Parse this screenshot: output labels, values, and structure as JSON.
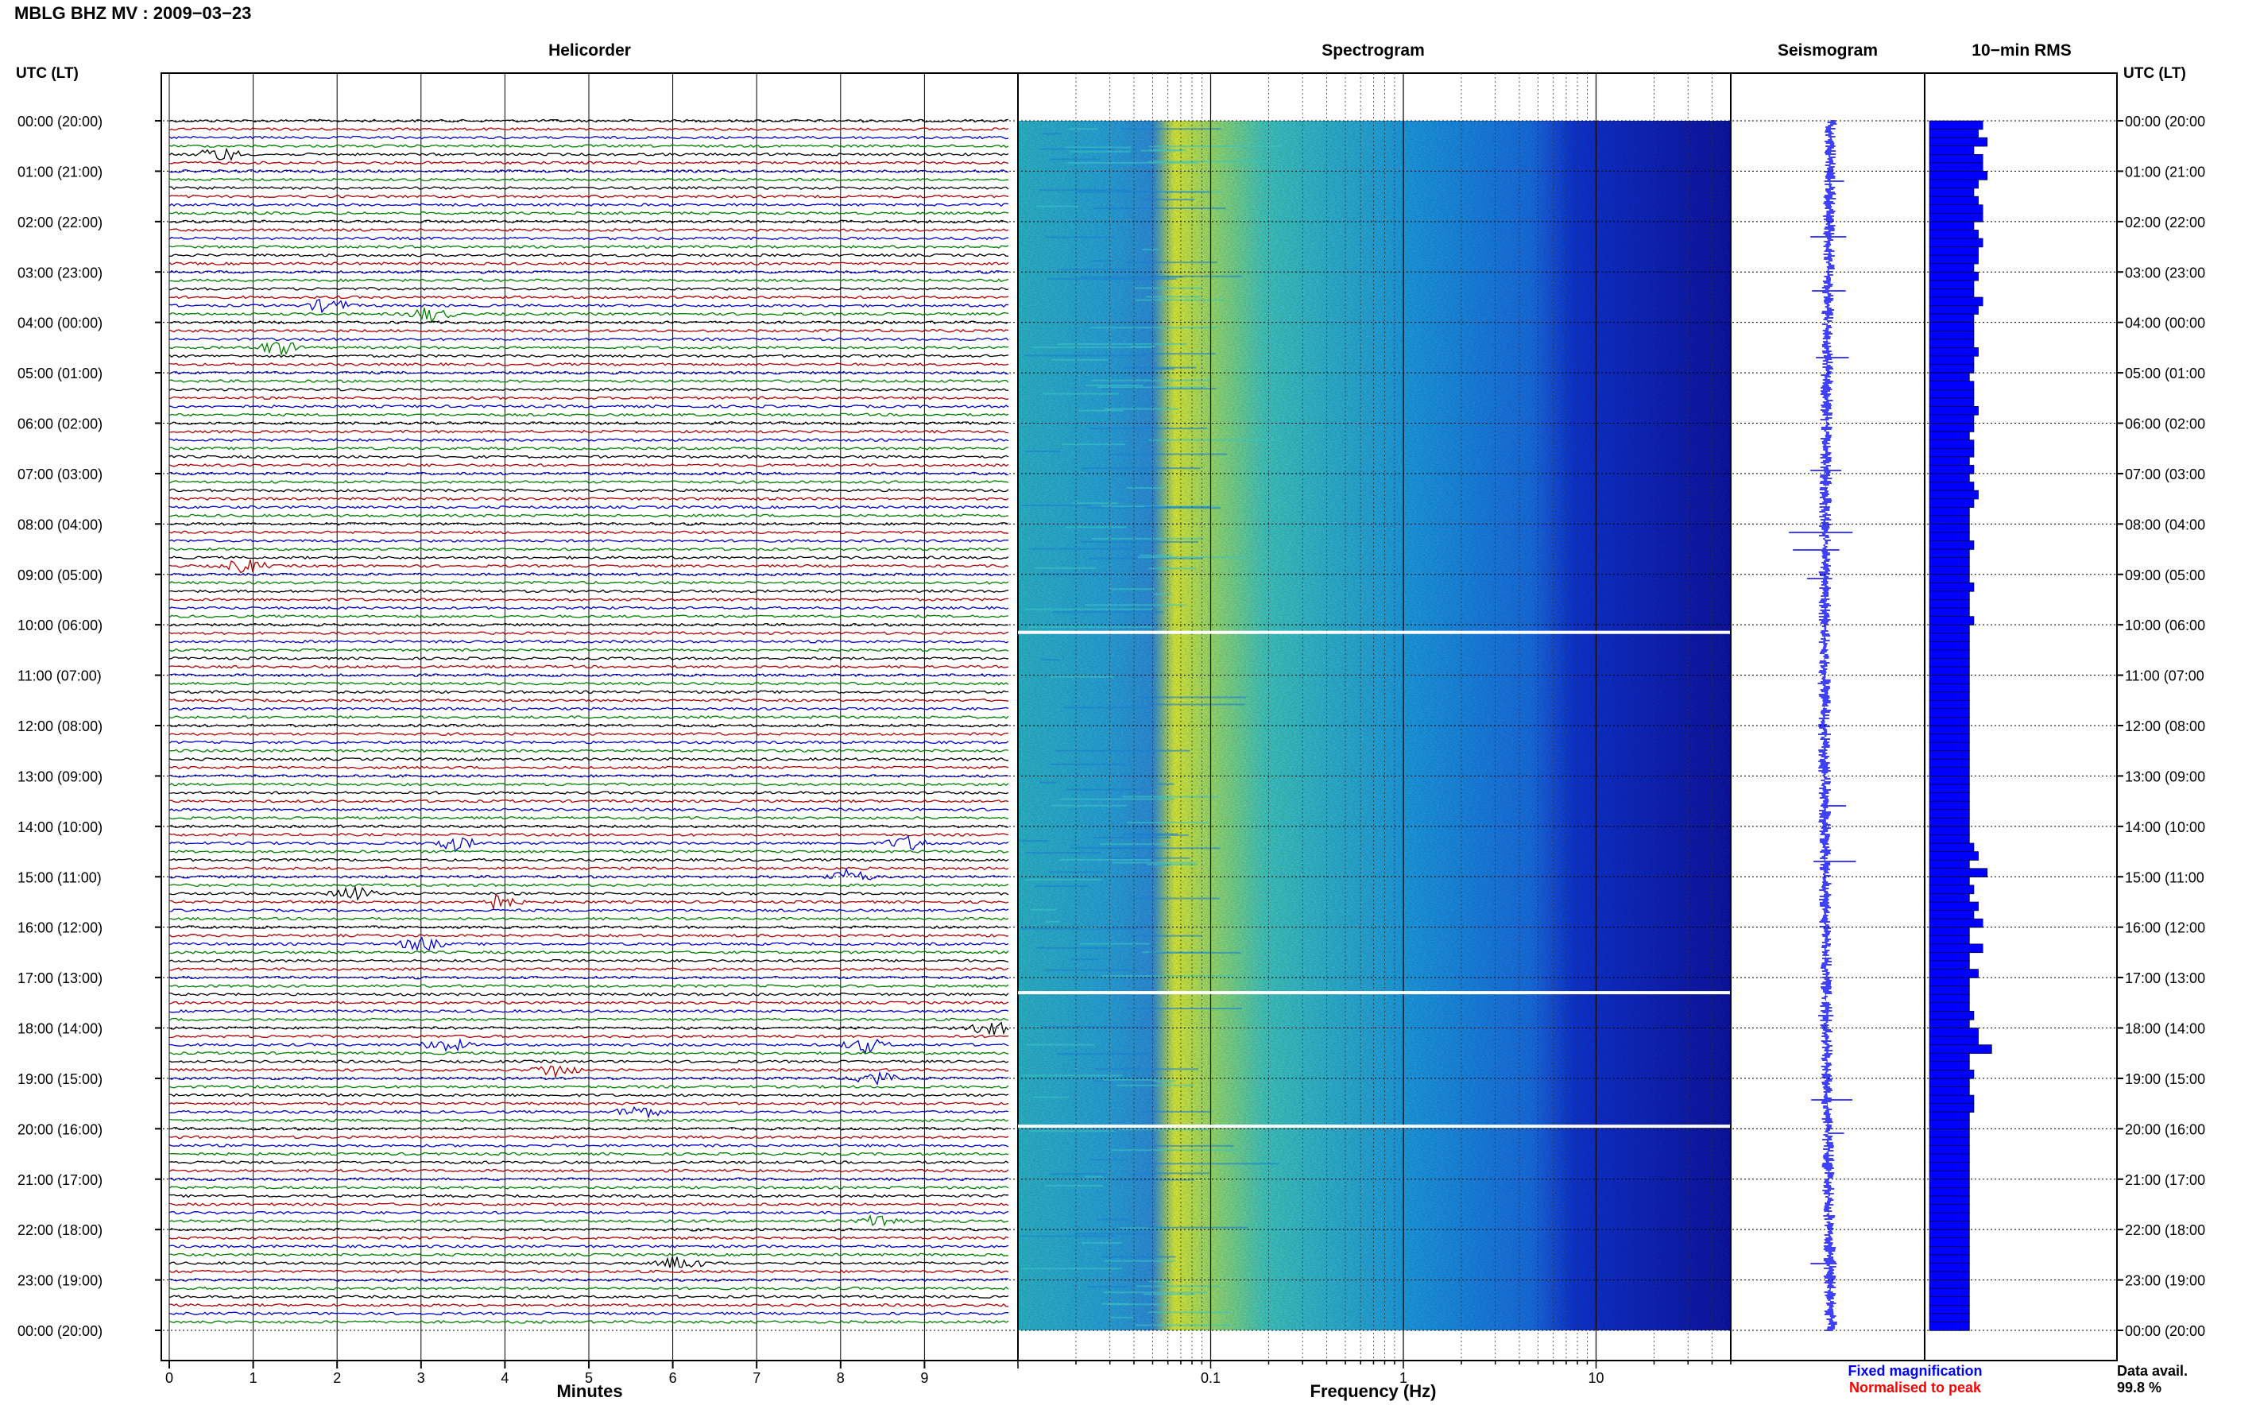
{
  "header": {
    "station_title": "MBLG BHZ MV : 2009−03−23",
    "left_col_label": "UTC (LT)",
    "right_col_label": "UTC (LT)"
  },
  "panels": {
    "helicorder_title": "Helicorder",
    "spectrogram_title": "Spectrogram",
    "seismogram_title": "Seismogram",
    "rms_title": "10−min RMS"
  },
  "axes": {
    "minutes_label": "Minutes",
    "frequency_label": "Frequency (Hz)",
    "minute_ticks": [
      "0",
      "1",
      "2",
      "3",
      "4",
      "5",
      "6",
      "7",
      "8",
      "9"
    ],
    "freq_ticks": [
      {
        "value": 0.1,
        "label": "0.1"
      },
      {
        "value": 1,
        "label": "1"
      },
      {
        "value": 10,
        "label": "10"
      }
    ],
    "freq_range": [
      0.01,
      50
    ]
  },
  "time_labels": [
    "00:00 (20:00)",
    "01:00 (21:00)",
    "02:00 (22:00)",
    "03:00 (23:00)",
    "04:00 (00:00)",
    "05:00 (01:00)",
    "06:00 (02:00)",
    "07:00 (03:00)",
    "08:00 (04:00)",
    "09:00 (05:00)",
    "10:00 (06:00)",
    "11:00 (07:00)",
    "12:00 (08:00)",
    "13:00 (09:00)",
    "14:00 (10:00)",
    "15:00 (11:00)",
    "16:00 (12:00)",
    "17:00 (13:00)",
    "18:00 (14:00)",
    "19:00 (15:00)",
    "20:00 (16:00)",
    "21:00 (17:00)",
    "22:00 (18:00)",
    "23:00 (19:00)",
    "00:00 (20:00)"
  ],
  "legend": {
    "fixed": "Fixed magnification",
    "normalised": "Normalised to peak",
    "fixed_color": "#0000ff",
    "normalised_color": "#ff0000"
  },
  "availability": {
    "label": "Data avail.",
    "value": "99.8 %"
  },
  "colors": {
    "trace_cycle": [
      "#000000",
      "#b00000",
      "#0000cc",
      "#008000"
    ],
    "rms_bar": "#0000ff",
    "seismogram": "#0000ff"
  },
  "chart_data": {
    "type": "heatmap",
    "title": "",
    "helicorder": {
      "rows_per_hour": 6,
      "total_rows": 144,
      "minutes_per_row": 10,
      "events": [
        {
          "row": 4,
          "minute": 0.6,
          "color": "black"
        },
        {
          "row": 22,
          "minute": 1.9,
          "color": "black"
        },
        {
          "row": 23,
          "minute": 3.1,
          "color": "red"
        },
        {
          "row": 27,
          "minute": 1.3,
          "color": "black"
        },
        {
          "row": 53,
          "minute": 0.9,
          "color": "red"
        },
        {
          "row": 86,
          "minute": 3.4,
          "color": "black"
        },
        {
          "row": 86,
          "minute": 8.8,
          "color": "black"
        },
        {
          "row": 90,
          "minute": 8.1,
          "color": "blue"
        },
        {
          "row": 92,
          "minute": 2.2,
          "color": "black"
        },
        {
          "row": 93,
          "minute": 3.9,
          "color": "red"
        },
        {
          "row": 98,
          "minute": 3.0,
          "color": "red"
        },
        {
          "row": 108,
          "minute": 9.8,
          "color": "black"
        },
        {
          "row": 110,
          "minute": 3.3,
          "color": "green"
        },
        {
          "row": 110,
          "minute": 8.3,
          "color": "green"
        },
        {
          "row": 113,
          "minute": 4.6,
          "color": "black"
        },
        {
          "row": 114,
          "minute": 8.4,
          "color": "red"
        },
        {
          "row": 118,
          "minute": 5.6,
          "color": "green"
        },
        {
          "row": 131,
          "minute": 8.5,
          "color": "green"
        },
        {
          "row": 136,
          "minute": 6.1,
          "color": "black"
        }
      ]
    },
    "spectrogram": {
      "x_scale": "log",
      "xlabel": "Frequency (Hz)",
      "peak_band_hz": [
        0.13,
        0.3
      ],
      "gaps_hours": [
        10.15,
        17.3,
        19.95
      ]
    },
    "rms_10min": [
      12,
      11,
      13,
      10,
      12,
      12,
      13,
      11,
      10,
      11,
      12,
      12,
      10,
      11,
      12,
      11,
      11,
      10,
      11,
      10,
      10,
      12,
      11,
      10,
      10,
      10,
      10,
      11,
      10,
      10,
      9,
      10,
      10,
      10,
      11,
      10,
      10,
      9,
      10,
      10,
      9,
      10,
      9,
      10,
      11,
      10,
      9,
      9,
      9,
      9,
      10,
      9,
      9,
      9,
      9,
      10,
      9,
      9,
      9,
      10,
      9,
      9,
      9,
      9,
      9,
      9,
      9,
      9,
      9,
      9,
      9,
      9,
      9,
      9,
      9,
      9,
      9,
      9,
      9,
      9,
      9,
      9,
      9,
      9,
      9,
      9,
      10,
      11,
      9,
      13,
      9,
      10,
      9,
      11,
      10,
      12,
      9,
      9,
      12,
      9,
      9,
      11,
      9,
      9,
      9,
      9,
      10,
      9,
      11,
      11,
      14,
      9,
      9,
      10,
      9,
      9,
      10,
      10,
      9,
      9,
      9,
      9,
      9,
      9,
      9,
      9,
      9,
      9,
      9,
      9,
      9,
      9,
      9,
      9,
      9,
      9,
      9,
      9,
      9,
      9,
      9,
      9,
      9,
      9
    ]
  }
}
